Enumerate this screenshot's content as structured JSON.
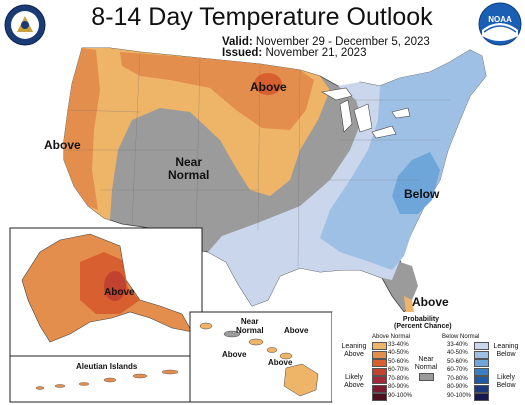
{
  "title": "8-14 Day Temperature Outlook",
  "valid_label": "Valid:",
  "valid_dates": "November 29 - December 5, 2023",
  "issued_label": "Issued:",
  "issued_date": "November 21, 2023",
  "logos": {
    "left": "noaa-weather-service-seal",
    "right": "NOAA"
  },
  "colors": {
    "above_light": "#eeb468",
    "above_mid": "#e48e4d",
    "above_strong": "#d85f2f",
    "near": "#9b9b9b",
    "below_light": "#c9d6ec",
    "below_mid": "#9fc0e5",
    "below_strong": "#6ea6da"
  },
  "regions": {
    "west": "Above",
    "north_central": "Above",
    "near_normal": [
      "Near",
      "Normal"
    ],
    "southeast": "Below",
    "florida": "Above",
    "alaska": "Above",
    "aleutian": "Aleutian Islands",
    "hawaii_near": [
      "Near",
      "Normal"
    ],
    "hawaii_above_1": "Above",
    "hawaii_above_2": "Above",
    "hawaii_above_3": "Above"
  },
  "legend": {
    "title": "Probability",
    "subtitle": "(Percent Chance)",
    "above_normal": "Above Normal",
    "below_normal": "Below Normal",
    "leaning_above": [
      "Leaning",
      "Above"
    ],
    "likely_above": [
      "Likely",
      "Above"
    ],
    "near_normal": [
      "Near",
      "Normal"
    ],
    "leaning_below": [
      "Leaning",
      "Below"
    ],
    "likely_below": [
      "Likely",
      "Below"
    ],
    "above_bins": [
      {
        "range": "33-40%",
        "color": "#eeb468"
      },
      {
        "range": "40-50%",
        "color": "#e48e4d"
      },
      {
        "range": "50-60%",
        "color": "#d85f2f"
      },
      {
        "range": "60-70%",
        "color": "#c1432f"
      },
      {
        "range": "70-80%",
        "color": "#a0293a"
      },
      {
        "range": "80-90%",
        "color": "#7a1b2c"
      },
      {
        "range": "90-100%",
        "color": "#4c0f1c"
      }
    ],
    "below_bins": [
      {
        "range": "33-40%",
        "color": "#c9d6ec"
      },
      {
        "range": "40-50%",
        "color": "#9fc0e5"
      },
      {
        "range": "50-60%",
        "color": "#6ea6da"
      },
      {
        "range": "60-70%",
        "color": "#3a7fc2"
      },
      {
        "range": "70-80%",
        "color": "#1f5aa3"
      },
      {
        "range": "80-90%",
        "color": "#1a3a7e"
      },
      {
        "range": "90-100%",
        "color": "#16194d"
      }
    ]
  }
}
